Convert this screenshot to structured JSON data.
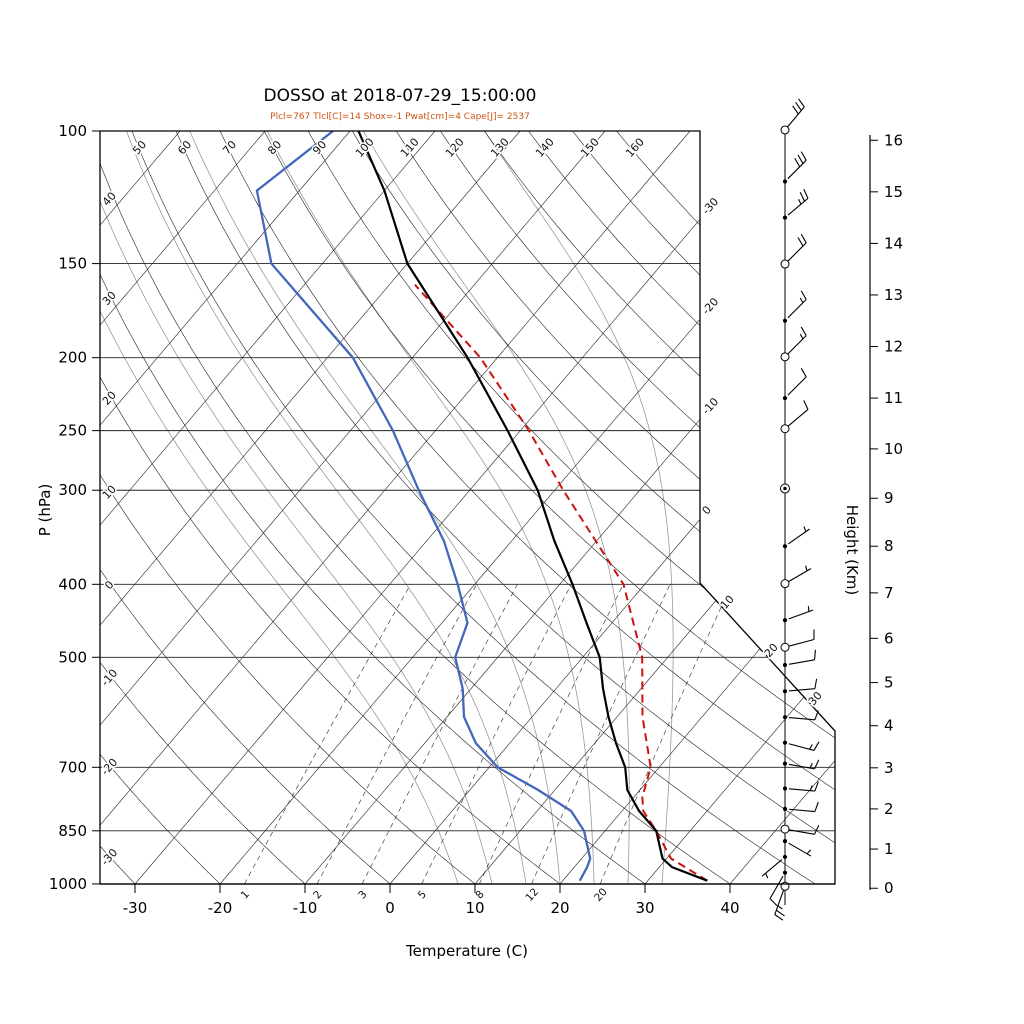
{
  "title": "DOSSO at 2018-07-29_15:00:00",
  "subtitle": "Plcl=767 Tlcl[C]=14 Shox=-1 Pwat[cm]=4 Cape[J]= 2537",
  "colors": {
    "temperature": "#000000",
    "dewpoint": "#4466bb",
    "parcel": "#cc1111",
    "subtitle": "#cc5511",
    "grid": "#222222",
    "moist_adiabat": "#999999",
    "mixing_ratio": "#444444"
  },
  "axes": {
    "pressure_label": "P (hPa)",
    "pressure_ticks": [
      100,
      150,
      200,
      250,
      300,
      400,
      500,
      700,
      850,
      1000
    ],
    "temperature_label": "Temperature (C)",
    "temperature_ticks": [
      -30,
      -20,
      -10,
      0,
      10,
      20,
      30,
      40
    ],
    "height_label": "Height (Km)",
    "height_ticks": [
      0,
      1,
      2,
      3,
      4,
      5,
      6,
      7,
      8,
      9,
      10,
      11,
      12,
      13,
      14,
      15,
      16
    ]
  },
  "background": {
    "dry_adiabat_labels": [
      -30,
      -20,
      -10,
      0,
      10,
      20,
      30,
      40,
      50,
      60,
      70,
      80,
      90,
      100,
      110,
      120,
      130,
      140,
      150,
      160
    ],
    "isotherm_edge_labels": [
      -30,
      -20,
      -10,
      0,
      10,
      20,
      30
    ],
    "moist_adiabat_values": [
      8,
      12,
      16,
      20,
      24,
      28,
      32
    ],
    "mixing_ratio_values": [
      1,
      2,
      3,
      5,
      8,
      12,
      20
    ]
  },
  "chart_data": {
    "type": "line",
    "diagram": "skew-T log-P sounding",
    "station": "DOSSO",
    "datetime": "2018-07-29_15:00:00",
    "indices": {
      "Plcl": 767,
      "Tlcl_C": 14,
      "Shox": -1,
      "Pwat_cm": 4,
      "Cape_J": 2537
    },
    "pressure_range_hPa": [
      100,
      1000
    ],
    "temperature_range_C": [
      -30,
      40
    ],
    "height_range_km": [
      0,
      16
    ],
    "temperature_profile": [
      [
        990,
        37
      ],
      [
        950,
        31.5
      ],
      [
        925,
        29.5
      ],
      [
        850,
        26
      ],
      [
        800,
        22
      ],
      [
        750,
        18.5
      ],
      [
        700,
        16
      ],
      [
        650,
        12.5
      ],
      [
        600,
        9
      ],
      [
        550,
        5.5
      ],
      [
        500,
        2
      ],
      [
        450,
        -3
      ],
      [
        400,
        -8.5
      ],
      [
        350,
        -15
      ],
      [
        300,
        -22
      ],
      [
        250,
        -31.5
      ],
      [
        200,
        -43.5
      ],
      [
        150,
        -60
      ],
      [
        120,
        -70
      ],
      [
        100,
        -79
      ]
    ],
    "dewpoint_profile": [
      [
        990,
        22
      ],
      [
        950,
        21.5
      ],
      [
        925,
        21
      ],
      [
        850,
        17.5
      ],
      [
        800,
        14
      ],
      [
        750,
        8
      ],
      [
        700,
        1
      ],
      [
        650,
        -4
      ],
      [
        600,
        -8
      ],
      [
        550,
        -11
      ],
      [
        500,
        -15
      ],
      [
        450,
        -17
      ],
      [
        400,
        -22
      ],
      [
        350,
        -28
      ],
      [
        300,
        -36
      ],
      [
        250,
        -45
      ],
      [
        200,
        -57
      ],
      [
        150,
        -76
      ],
      [
        120,
        -85
      ],
      [
        100,
        -82
      ]
    ],
    "parcel_profile": [
      [
        990,
        37
      ],
      [
        925,
        30.5
      ],
      [
        850,
        26
      ],
      [
        800,
        22.5
      ],
      [
        767,
        21
      ],
      [
        700,
        19
      ],
      [
        600,
        13
      ],
      [
        500,
        7
      ],
      [
        400,
        -2.5
      ],
      [
        300,
        -19
      ],
      [
        250,
        -29
      ],
      [
        200,
        -42
      ],
      [
        160,
        -57
      ]
    ],
    "wind_speed_unit": "kt",
    "wind_barbs": [
      {
        "km": 0.05,
        "dir": 200,
        "kt": 25,
        "marker": "open"
      },
      {
        "km": 0.4,
        "dir": 210,
        "kt": 10,
        "marker": "dot"
      },
      {
        "km": 0.8,
        "dir": 230,
        "kt": 5,
        "marker": "dot"
      },
      {
        "km": 1.2,
        "dir": 120,
        "kt": 5,
        "marker": "dot"
      },
      {
        "km": 1.5,
        "dir": 100,
        "kt": 10,
        "marker": "open"
      },
      {
        "km": 2.0,
        "dir": 95,
        "kt": 10,
        "marker": "dot"
      },
      {
        "km": 2.5,
        "dir": 95,
        "kt": 15,
        "marker": "dot"
      },
      {
        "km": 3.1,
        "dir": 100,
        "kt": 15,
        "marker": "dot"
      },
      {
        "km": 3.6,
        "dir": 105,
        "kt": 15,
        "marker": "dot"
      },
      {
        "km": 4.2,
        "dir": 95,
        "kt": 10,
        "marker": "dot"
      },
      {
        "km": 4.8,
        "dir": 85,
        "kt": 10,
        "marker": "dot"
      },
      {
        "km": 5.4,
        "dir": 80,
        "kt": 10,
        "marker": "dot"
      },
      {
        "km": 5.8,
        "dir": 75,
        "kt": 10,
        "marker": "open"
      },
      {
        "km": 6.4,
        "dir": 70,
        "kt": 5,
        "marker": "dot"
      },
      {
        "km": 7.2,
        "dir": 60,
        "kt": 5,
        "marker": "open"
      },
      {
        "km": 8.0,
        "dir": 55,
        "kt": 5,
        "marker": "dot"
      },
      {
        "km": 9.2,
        "dir": 0,
        "kt": 0,
        "marker": "calm"
      },
      {
        "km": 10.4,
        "dir": 50,
        "kt": 10,
        "marker": "open"
      },
      {
        "km": 11.0,
        "dir": 45,
        "kt": 10,
        "marker": "dot"
      },
      {
        "km": 11.8,
        "dir": 45,
        "kt": 15,
        "marker": "open"
      },
      {
        "km": 12.5,
        "dir": 45,
        "kt": 15,
        "marker": "dot"
      },
      {
        "km": 13.6,
        "dir": 45,
        "kt": 20,
        "marker": "open"
      },
      {
        "km": 14.5,
        "dir": 50,
        "kt": 25,
        "marker": "dot"
      },
      {
        "km": 15.2,
        "dir": 45,
        "kt": 30,
        "marker": "dot"
      },
      {
        "km": 16.2,
        "dir": 40,
        "kt": 30,
        "marker": "open"
      }
    ]
  }
}
